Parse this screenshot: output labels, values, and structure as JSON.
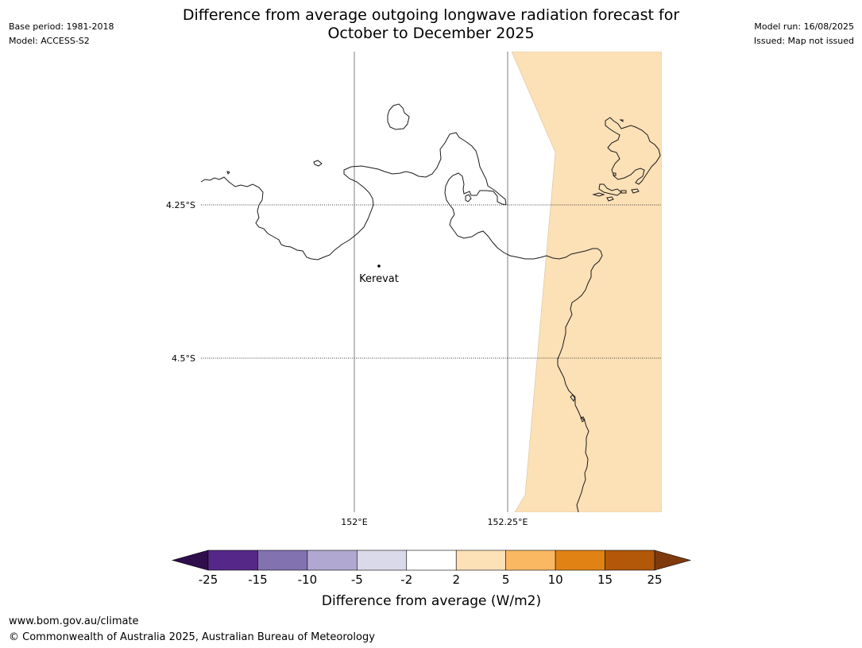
{
  "title": {
    "line1": "Difference from average outgoing longwave radiation forecast for",
    "line2": "October to December 2025"
  },
  "meta_left": {
    "base_period": "Base period: 1981-2018",
    "model": "Model: ACCESS-S2"
  },
  "meta_right": {
    "model_run": "Model run: 16/08/2025",
    "issued": "Issued: Map not issued"
  },
  "map": {
    "lat_labels": [
      "4.25°S",
      "4.5°S"
    ],
    "lon_labels": [
      "152°E",
      "152.25°E"
    ],
    "place": {
      "name": "Kerevat"
    },
    "anomaly_category": "2 to 5",
    "anomaly_color": "#fce0b6"
  },
  "colorbar": {
    "label": "Difference from average (W/m2)",
    "ticks": [
      "-25",
      "-15",
      "-10",
      "-5",
      "-2",
      "2",
      "5",
      "10",
      "15",
      "25"
    ],
    "colors": [
      "#552888",
      "#8272b0",
      "#b1a8d1",
      "#d9d9ea",
      "#ffffff",
      "#fce0b6",
      "#fbb862",
      "#e08314",
      "#b25808"
    ],
    "under_color": "#2f0e4c",
    "over_color": "#7e3a0c"
  },
  "footer": {
    "url": "www.bom.gov.au/climate",
    "copyright": "© Commonwealth of Australia 2025, Australian Bureau of Meteorology"
  }
}
